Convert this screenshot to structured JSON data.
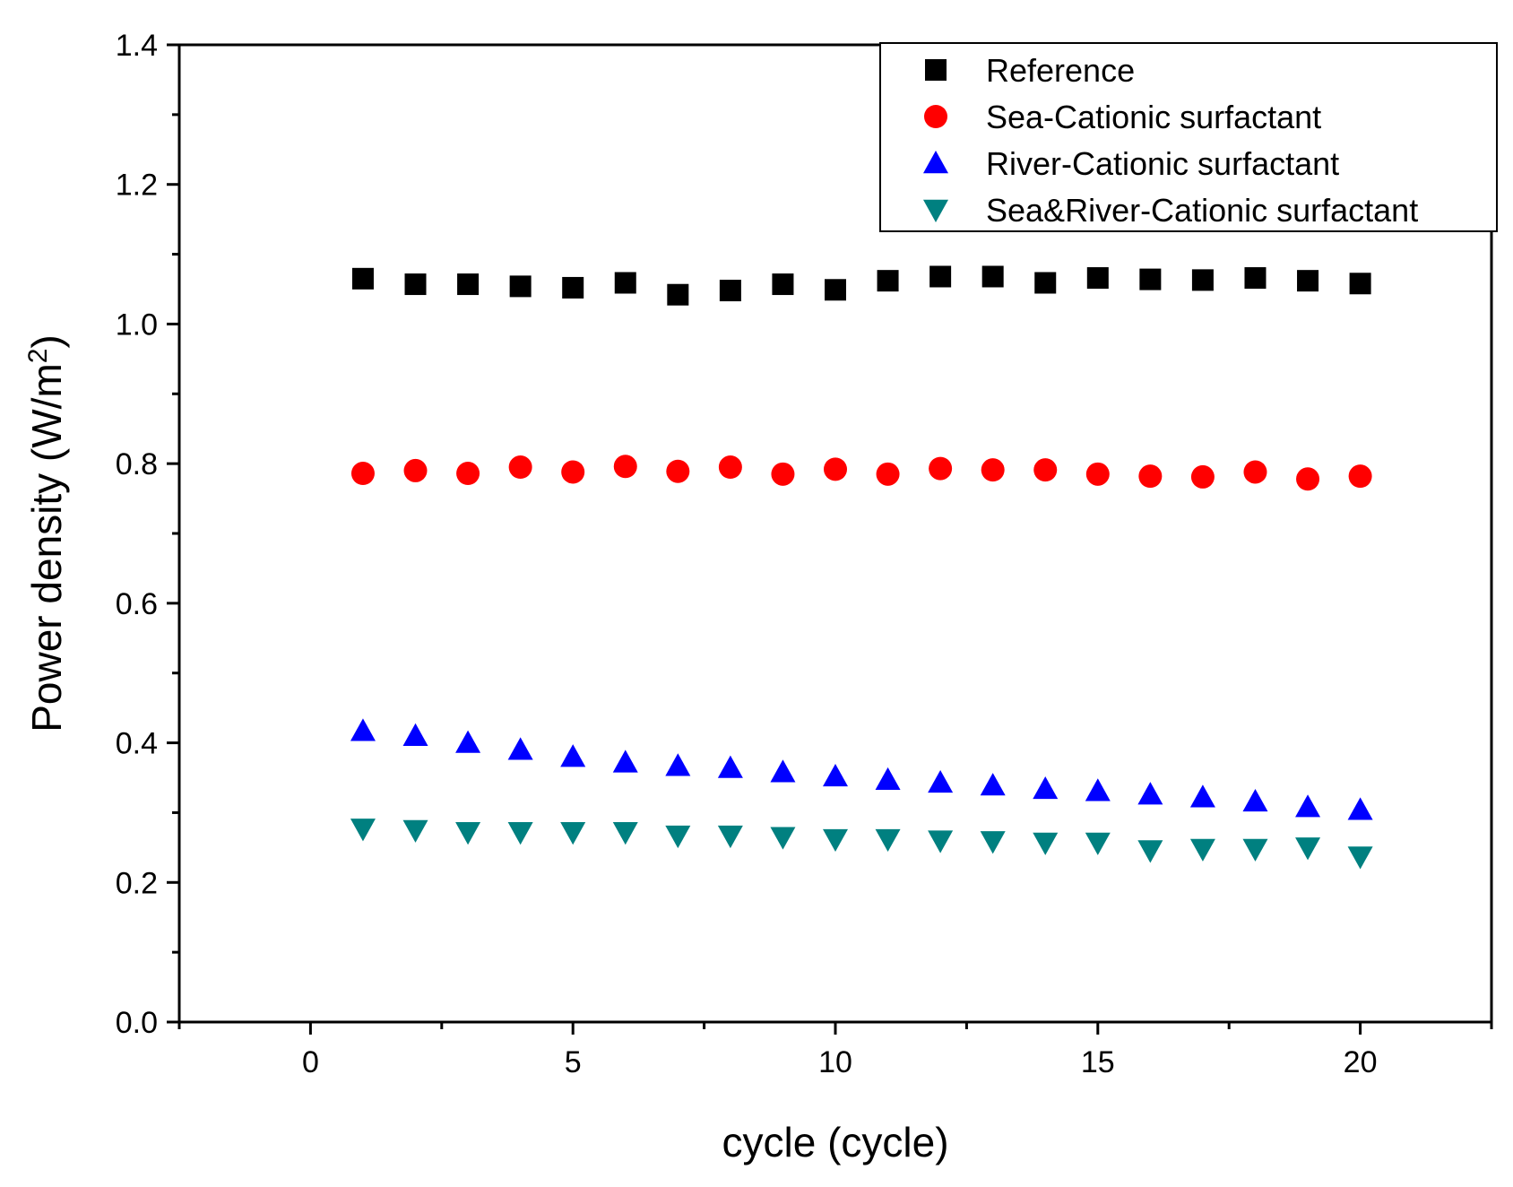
{
  "chart_data": {
    "type": "scatter",
    "title": "",
    "xlabel": "cycle (cycle)",
    "ylabel_main": "Power density (W/m",
    "ylabel_sup": "2",
    "ylabel_close": ")",
    "xlim": [
      -2.5,
      22.5
    ],
    "ylim": [
      0.0,
      1.4
    ],
    "x_ticks": [
      0,
      5,
      10,
      15,
      20
    ],
    "x_tick_labels": [
      "0",
      "5",
      "10",
      "15",
      "20"
    ],
    "y_ticks": [
      0.0,
      0.2,
      0.4,
      0.6,
      0.8,
      1.0,
      1.2,
      1.4
    ],
    "y_tick_labels": [
      "0.0",
      "0.2",
      "0.4",
      "0.6",
      "0.8",
      "1.0",
      "1.2",
      "1.4"
    ],
    "legend_position": "top-right",
    "x": [
      1,
      2,
      3,
      4,
      5,
      6,
      7,
      8,
      9,
      10,
      11,
      12,
      13,
      14,
      15,
      16,
      17,
      18,
      19,
      20
    ],
    "series": [
      {
        "name": "Reference",
        "marker": "square",
        "color": "#000000",
        "values": [
          1.065,
          1.057,
          1.057,
          1.054,
          1.052,
          1.059,
          1.042,
          1.048,
          1.057,
          1.049,
          1.062,
          1.068,
          1.068,
          1.059,
          1.066,
          1.064,
          1.063,
          1.066,
          1.062,
          1.058
        ]
      },
      {
        "name": "Sea-Cationic surfactant",
        "marker": "circle",
        "color": "#ff0000",
        "values": [
          0.786,
          0.79,
          0.786,
          0.795,
          0.788,
          0.796,
          0.789,
          0.795,
          0.785,
          0.792,
          0.785,
          0.793,
          0.791,
          0.791,
          0.785,
          0.782,
          0.781,
          0.788,
          0.778,
          0.782
        ]
      },
      {
        "name": "River-Cationic surfactant",
        "marker": "triangle-up",
        "color": "#0000ff",
        "values": [
          0.417,
          0.41,
          0.4,
          0.39,
          0.38,
          0.372,
          0.367,
          0.364,
          0.358,
          0.352,
          0.347,
          0.343,
          0.339,
          0.334,
          0.331,
          0.326,
          0.322,
          0.316,
          0.308,
          0.304
        ]
      },
      {
        "name": "Sea&River-Cationic surfactant",
        "marker": "triangle-down",
        "color": "#008080",
        "values": [
          0.277,
          0.275,
          0.272,
          0.272,
          0.272,
          0.272,
          0.267,
          0.267,
          0.265,
          0.262,
          0.262,
          0.26,
          0.259,
          0.257,
          0.257,
          0.246,
          0.248,
          0.248,
          0.25,
          0.237
        ]
      }
    ]
  }
}
